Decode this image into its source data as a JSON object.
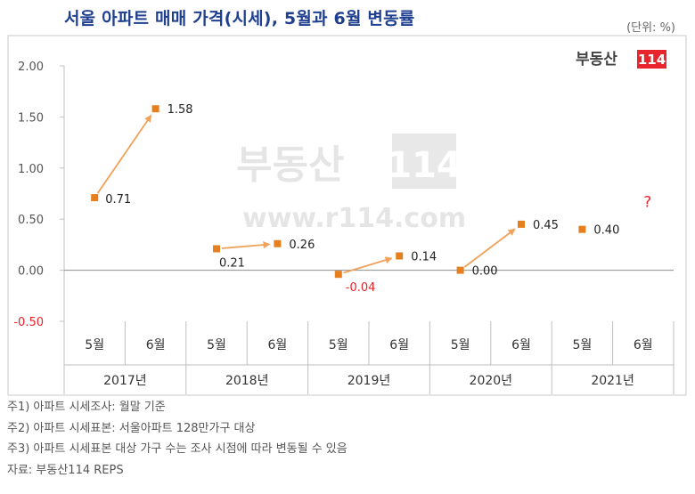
{
  "title": "서울 아파트 매매 가격(시세), 5월과 6월 변동률",
  "unit": "(단위: %)",
  "logo": {
    "text": "부동산",
    "num": "114"
  },
  "watermark": {
    "text": "부동산",
    "num": "114",
    "url": "www.r114.com"
  },
  "colors": {
    "marker": "#e6801e",
    "arrow": "#f0a15a",
    "negative": "#e8242c",
    "title": "#1f3f8f",
    "logo_box": "#e8242c"
  },
  "chart_data": {
    "type": "scatter",
    "title": "서울 아파트 매매 가격(시세), 5월과 6월 변동률",
    "ylabel": "(단위: %)",
    "ylim": [
      -0.5,
      2.0
    ],
    "yticks": [
      "2.00",
      "1.50",
      "1.00",
      "0.50",
      "0.00",
      "-0.50"
    ],
    "ytick_values": [
      2.0,
      1.5,
      1.0,
      0.5,
      0.0,
      -0.5
    ],
    "months": [
      "5월",
      "6월",
      "5월",
      "6월",
      "5월",
      "6월",
      "5월",
      "6월",
      "5월",
      "6월"
    ],
    "years": [
      "2017년",
      "2018년",
      "2019년",
      "2020년",
      "2021년"
    ],
    "points": [
      {
        "year": "2017년",
        "may": 0.71,
        "jun": 1.58,
        "may_label": "0.71",
        "jun_label": "1.58"
      },
      {
        "year": "2018년",
        "may": 0.21,
        "jun": 0.26,
        "may_label": "0.21",
        "jun_label": "0.26"
      },
      {
        "year": "2019년",
        "may": -0.04,
        "jun": 0.14,
        "may_label": "-0.04",
        "jun_label": "0.14"
      },
      {
        "year": "2020년",
        "may": 0.0,
        "jun": 0.45,
        "may_label": "0.00",
        "jun_label": "0.45"
      },
      {
        "year": "2021년",
        "may": 0.4,
        "jun": null,
        "may_label": "0.40",
        "jun_label": "?"
      }
    ]
  },
  "notes": [
    "주1) 아파트 시세조사: 월말 기준",
    "주2) 아파트 시세표본: 서울아파트 128만가구 대상",
    "주3) 아파트 시세표본 대상 가구 수는 조사 시점에 따라 변동될 수 있음",
    "자료: 부동산114 REPS"
  ]
}
